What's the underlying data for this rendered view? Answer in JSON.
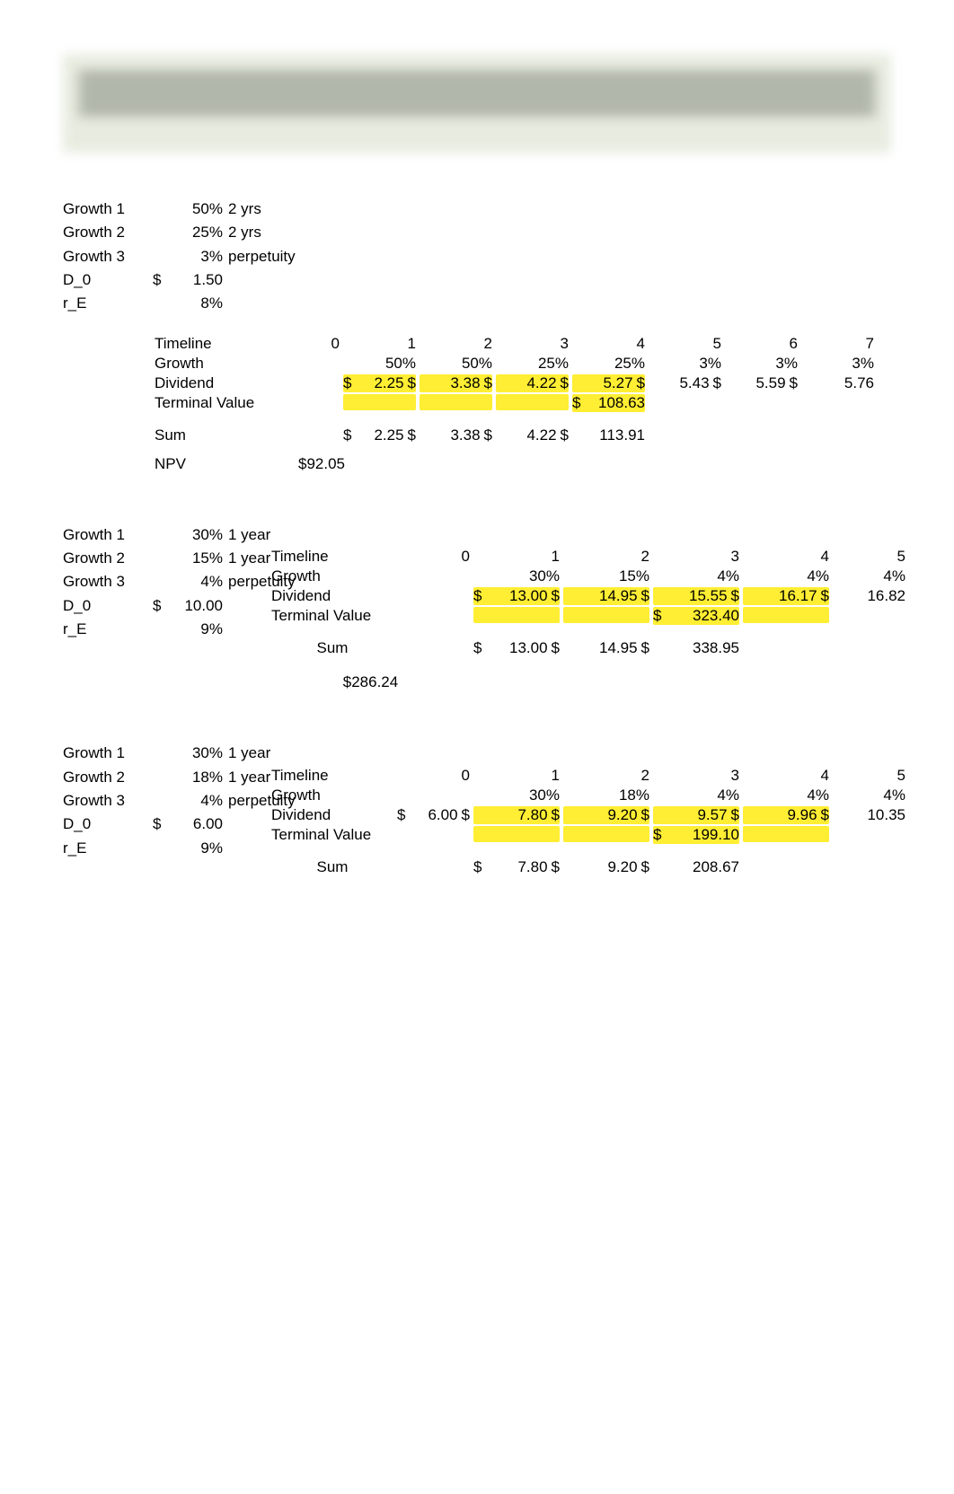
{
  "blocks": [
    {
      "assumptions": [
        {
          "label": "Growth 1",
          "dollar": "",
          "value": "50%",
          "note": "2 yrs"
        },
        {
          "label": "Growth 2",
          "dollar": "",
          "value": "25%",
          "note": "2 yrs"
        },
        {
          "label": "Growth 3",
          "dollar": "",
          "value": "3%",
          "note": "perpetuity"
        },
        {
          "label": "D_0",
          "dollar": "$",
          "value": "1.50",
          "note": ""
        },
        {
          "label": "r_E",
          "dollar": "",
          "value": "8%",
          "note": ""
        }
      ],
      "table": {
        "class": "t1",
        "timeline_label": "Timeline",
        "growth_label": "Growth",
        "dividend_label": "Dividend",
        "terminal_label": "Terminal Value",
        "sum_label": "Sum",
        "npv_label": "NPV",
        "npv_value": "$92.05",
        "timeline": [
          "0",
          "1",
          "2",
          "3",
          "4",
          "5",
          "6",
          "7"
        ],
        "growth": [
          "",
          "50%",
          "50%",
          "25%",
          "25%",
          "3%",
          "3%",
          "3%"
        ],
        "dividend": [
          {
            "s": "",
            "n": ""
          },
          {
            "s": "$",
            "n": "2.25",
            "hl": true,
            "trail": "$"
          },
          {
            "s": "",
            "n": "3.38",
            "hl": true,
            "trail": "$"
          },
          {
            "s": "",
            "n": "4.22",
            "hl": true,
            "trail": "$"
          },
          {
            "s": "",
            "n": "5.27",
            "hl": true,
            "trail": "$"
          },
          {
            "s": "",
            "n": "5.43",
            "trail": "$"
          },
          {
            "s": "",
            "n": "5.59",
            "trail": "$"
          },
          {
            "s": "",
            "n": "5.76"
          }
        ],
        "terminal_strip_cols": [
          1,
          2,
          3,
          4
        ],
        "terminal": {
          "col": 4,
          "s": "$",
          "n": "108.63",
          "hl": true
        },
        "sum": [
          {
            "s": "$",
            "n": "2.25",
            "trail": "$"
          },
          {
            "s": "",
            "n": "3.38",
            "trail": "$"
          },
          {
            "s": "",
            "n": "4.22",
            "trail": "$"
          },
          {
            "s": "",
            "n": "113.91"
          }
        ],
        "sum_start_col": 1
      }
    },
    {
      "assumptions": [
        {
          "label": "Growth 1",
          "dollar": "",
          "value": "30%",
          "note": "1 year"
        },
        {
          "label": "Growth 2",
          "dollar": "",
          "value": "15%",
          "note": "1 year"
        },
        {
          "label": "Growth 3",
          "dollar": "",
          "value": "4%",
          "note": "perpetuity"
        },
        {
          "label": "D_0",
          "dollar": "$",
          "value": "10.00",
          "note": ""
        },
        {
          "label": "r_E",
          "dollar": "",
          "value": "9%",
          "note": ""
        }
      ],
      "table": {
        "class": "t23",
        "timeline_label": "Timeline",
        "growth_label": "Growth",
        "dividend_label": "Dividend",
        "terminal_label": "Terminal Value",
        "sum_label": "Sum",
        "npv_value": "$286.24",
        "timeline": [
          "0",
          "1",
          "2",
          "3",
          "4",
          "5"
        ],
        "growth": [
          "",
          "30%",
          "15%",
          "4%",
          "4%",
          "4%"
        ],
        "dividend": [
          {
            "s": "",
            "n": ""
          },
          {
            "s": "$",
            "n": "13.00",
            "hl": true,
            "trail": "$"
          },
          {
            "s": "",
            "n": "14.95",
            "hl": true,
            "trail": "$"
          },
          {
            "s": "",
            "n": "15.55",
            "hl": true,
            "trail": "$"
          },
          {
            "s": "",
            "n": "16.17",
            "hl": true,
            "trail": "$"
          },
          {
            "s": "",
            "n": "16.82"
          }
        ],
        "terminal_strip_cols": [
          1,
          2,
          3,
          4
        ],
        "terminal": {
          "col": 3,
          "s": "$",
          "n": "323.40",
          "hl": true
        },
        "sum": [
          {
            "s": "$",
            "n": "13.00",
            "trail": "$"
          },
          {
            "s": "",
            "n": "14.95",
            "trail": "$"
          },
          {
            "s": "",
            "n": "338.95"
          }
        ],
        "sum_start_col": 1
      }
    },
    {
      "assumptions": [
        {
          "label": "Growth 1",
          "dollar": "",
          "value": "30%",
          "note": "1 year"
        },
        {
          "label": "Growth 2",
          "dollar": "",
          "value": "18%",
          "note": "1 year"
        },
        {
          "label": "Growth 3",
          "dollar": "",
          "value": "4%",
          "note": "perpetuity"
        },
        {
          "label": "D_0",
          "dollar": "$",
          "value": "6.00",
          "note": ""
        },
        {
          "label": "r_E",
          "dollar": "",
          "value": "9%",
          "note": ""
        }
      ],
      "table": {
        "class": "t23",
        "timeline_label": "Timeline",
        "growth_label": "Growth",
        "dividend_label": "Dividend",
        "terminal_label": "Terminal Value",
        "sum_label": "Sum",
        "timeline": [
          "0",
          "1",
          "2",
          "3",
          "4",
          "5"
        ],
        "growth": [
          "",
          "30%",
          "18%",
          "4%",
          "4%",
          "4%"
        ],
        "dividend": [
          {
            "s": "$",
            "n": "6.00",
            "trail": "$"
          },
          {
            "s": "",
            "n": "7.80",
            "hl": true,
            "trail": "$"
          },
          {
            "s": "",
            "n": "9.20",
            "hl": true,
            "trail": "$"
          },
          {
            "s": "",
            "n": "9.57",
            "hl": true,
            "trail": "$"
          },
          {
            "s": "",
            "n": "9.96",
            "hl": true,
            "trail": "$"
          },
          {
            "s": "",
            "n": "10.35"
          }
        ],
        "terminal_strip_cols": [
          1,
          2,
          3,
          4
        ],
        "terminal": {
          "col": 3,
          "s": "$",
          "n": "199.10",
          "hl": true
        },
        "sum": [
          {
            "s": "$",
            "n": "7.80",
            "trail": "$"
          },
          {
            "s": "",
            "n": "9.20",
            "trail": "$"
          },
          {
            "s": "",
            "n": "208.67"
          }
        ],
        "sum_start_col": 1
      }
    }
  ],
  "colors": {
    "highlight": "#ffee33"
  }
}
